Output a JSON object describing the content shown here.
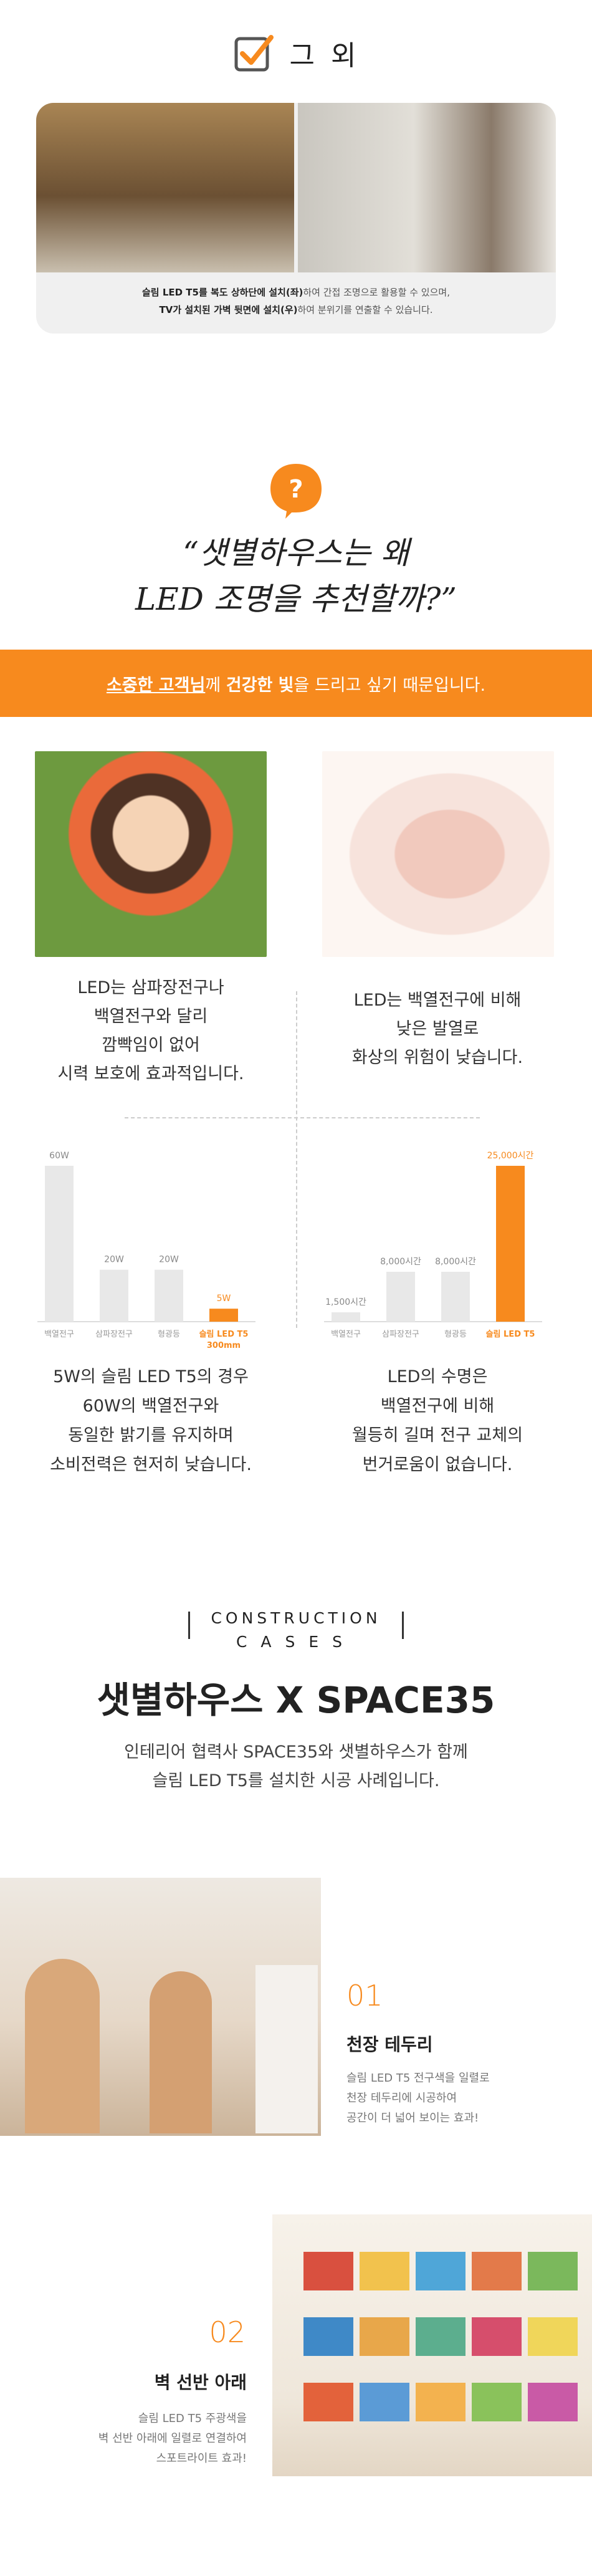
{
  "etc": {
    "title": "그 외",
    "caption_line1_bold": "슬림 LED T5를 복도 상하단에 설치(좌)",
    "caption_line1_rest": "하여 간접 조명으로 활용할 수 있으며,",
    "caption_line2_bold": "TV가 설치된 가벽 뒷면에 설치(우)",
    "caption_line2_rest": "하여 분위기를 연출할 수 있습니다."
  },
  "question": {
    "badge": "?",
    "title_line1": "“샛별하우스는 왜",
    "title_line2": "LED 조명을 추천할까?”",
    "band_u1": "소중한 고객님",
    "band_t1": "께 ",
    "band_b1": "건강한 빛",
    "band_t2": "을 드리고 싶기 때문입니다."
  },
  "benefits": {
    "left": [
      "LED는 삼파장전구나",
      "백열전구와 달리",
      "깜빡임이 없어",
      "시력 보호에 효과적입니다."
    ],
    "right": [
      "LED는 백열전구에 비해",
      "낮은 발열로",
      "화상의 위험이 낮습니다."
    ]
  },
  "chart_data": [
    {
      "type": "bar",
      "categories": [
        "백열전구",
        "삼파장전구",
        "형광등",
        "슬림 LED T5 300mm"
      ],
      "category_labels": [
        "백열전구",
        "삼파장전구",
        "형광등",
        "슬림 LED T5",
        "300mm"
      ],
      "values": [
        60,
        20,
        20,
        5
      ],
      "value_labels": [
        "60W",
        "20W",
        "20W",
        "5W"
      ],
      "title": "",
      "xlabel": "",
      "ylabel": "",
      "highlight_index": 3
    },
    {
      "type": "bar",
      "categories": [
        "백열전구",
        "삼파장전구",
        "형광등",
        "슬림 LED T5"
      ],
      "values": [
        1500,
        8000,
        8000,
        25000
      ],
      "value_labels": [
        "1,500시간",
        "8,000시간",
        "8,000시간",
        "25,000시간"
      ],
      "title": "",
      "xlabel": "",
      "ylabel": "",
      "highlight_index": 3
    }
  ],
  "chart_desc": {
    "left": [
      "5W의 슬림 LED T5의 경우",
      "60W의 백열전구와",
      "동일한 밝기를 유지하며",
      "소비전력은 현저히 낮습니다."
    ],
    "right": [
      "LED의 수명은",
      "백열전구에 비해",
      "월등히 길며 전구 교체의",
      "번거로움이 없습니다."
    ]
  },
  "cases": {
    "head_line1": "CONSTRUCTION",
    "head_line2": "CASES",
    "title": "샛별하우스 X SPACE35",
    "sub_line1": "인테리어 협력사 SPACE35와 샛별하우스가 함께",
    "sub_line2": "슬림 LED T5를 설치한 시공 사례입니다.",
    "items": [
      {
        "num": "01",
        "name": "천장 테두리",
        "desc": [
          "슬림 LED T5 전구색을 일렬로",
          "천장 테두리에 시공하여",
          "공간이 더 넓어 보이는 효과!"
        ]
      },
      {
        "num": "02",
        "name": "벽 선반 아래",
        "desc": [
          "슬림 LED T5 주광색을",
          "벽 선반 아래에 일렬로 연결하여",
          "스포트라이트 효과!"
        ]
      }
    ]
  },
  "colors": {
    "accent": "#f78a1e",
    "bar_gray": "#e8e8e8",
    "text": "#333333"
  }
}
